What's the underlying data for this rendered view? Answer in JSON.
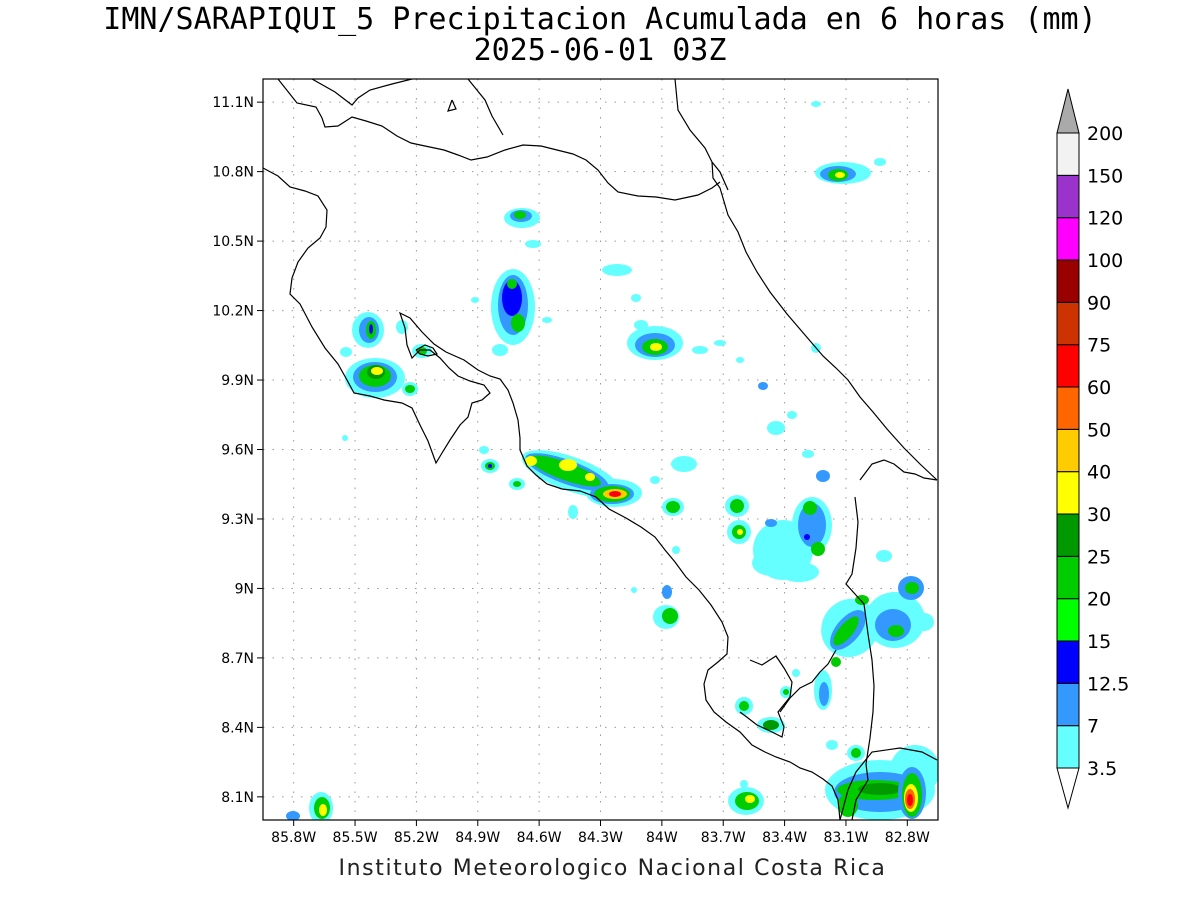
{
  "header": {
    "title": "IMN/SARAPIQUI_5 Precipitacion Acumulada en 6 horas (mm)",
    "subtitle": "2025-06-01 03Z"
  },
  "axes": {
    "lat_labels": [
      "11.1N",
      "10.8N",
      "10.5N",
      "10.2N",
      "9.9N",
      "9.6N",
      "9.3N",
      "9N",
      "8.7N",
      "8.4N",
      "8.1N"
    ],
    "lon_labels": [
      "85.8W",
      "85.5W",
      "85.2W",
      "84.9W",
      "84.6W",
      "84.3W",
      "84W",
      "83.7W",
      "83.4W",
      "83.1W",
      "82.8W"
    ],
    "lat_values": [
      11.1,
      10.8,
      10.5,
      10.2,
      9.9,
      9.6,
      9.3,
      9.0,
      8.7,
      8.4,
      8.1
    ],
    "lon_values": [
      -85.8,
      -85.5,
      -85.2,
      -84.9,
      -84.6,
      -84.3,
      -84.0,
      -83.7,
      -83.4,
      -83.1,
      -82.8
    ],
    "lat_range": [
      8.0,
      11.2
    ],
    "lon_range": [
      -85.95,
      -82.65
    ],
    "grid": "dotted"
  },
  "legend": {
    "position": "right",
    "levels": [
      "3.5",
      "7",
      "12.5",
      "15",
      "20",
      "25",
      "30",
      "40",
      "50",
      "60",
      "75",
      "90",
      "100",
      "120",
      "150",
      "200"
    ],
    "colors": [
      "#66ffff",
      "#3399ff",
      "#0000ff",
      "#00ff00",
      "#00cc00",
      "#009900",
      "#ffff00",
      "#ffcc00",
      "#ff6600",
      "#ff0000",
      "#cc3300",
      "#990000",
      "#ff00ff",
      "#9933cc",
      "#f2f2f2",
      "#aaaaaa"
    ]
  },
  "footer": {
    "credit": "Instituto Meteorologico Nacional Costa Rica"
  }
}
